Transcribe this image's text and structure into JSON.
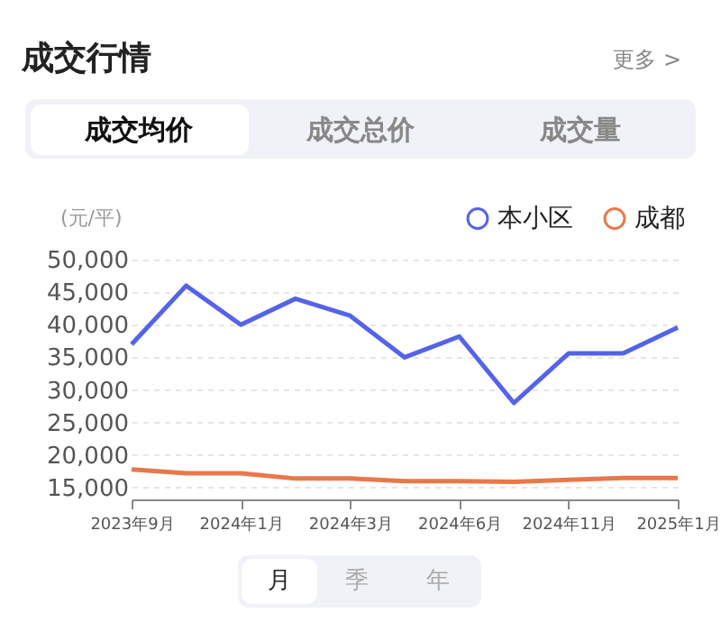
{
  "chart_data": {
    "type": "line",
    "title": "成交行情",
    "ylabel": "(元/平)",
    "annotations": [
      "更多 >",
      "成交均价",
      "成交总价",
      "成交量",
      "月",
      "季",
      "年"
    ],
    "categories": [
      "2023年9月",
      null,
      "2024年1月",
      null,
      "2024年3月",
      null,
      "2024年6月",
      null,
      "2024年11月",
      null,
      "2025年1月"
    ],
    "series": [
      {
        "name": "本小区",
        "color": "#5563e8",
        "values": [
          37000,
          46000,
          40000,
          44000,
          41400,
          35000,
          38200,
          28000,
          35600,
          35600,
          39600
        ]
      },
      {
        "name": "成都",
        "color": "#e8784a",
        "values": [
          17800,
          17200,
          17200,
          16400,
          16400,
          16000,
          16000,
          15900,
          16200,
          16500,
          16500
        ]
      }
    ],
    "ylim": [
      13200,
      50000
    ],
    "yticks": [
      {
        "value": 15000,
        "label": "15,000"
      },
      {
        "value": 20000,
        "label": "20,000"
      },
      {
        "value": 25000,
        "label": "25,000"
      },
      {
        "value": 30000,
        "label": "30,000"
      },
      {
        "value": 35000,
        "label": "35,000"
      },
      {
        "value": 40000,
        "label": "40,000"
      },
      {
        "value": 45000,
        "label": "45,000"
      },
      {
        "value": 50000,
        "label": "50,000"
      }
    ],
    "grid": "y",
    "legend": "top right",
    "marker": "none",
    "line_style": "solid"
  }
}
